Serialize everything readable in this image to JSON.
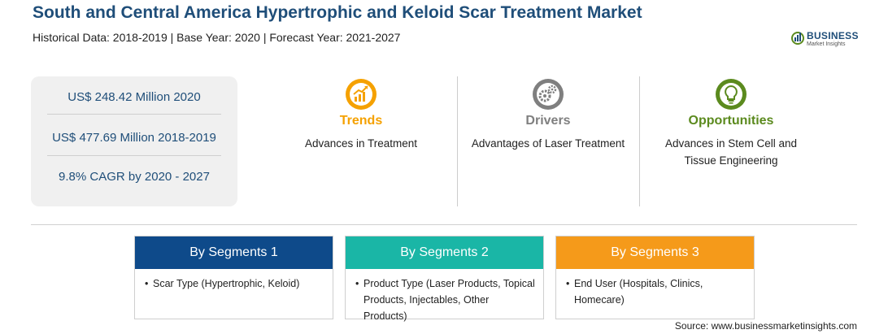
{
  "header": {
    "title": "South and Central America Hypertrophic and Keloid Scar Treatment Market",
    "subtitle": "Historical Data: 2018-2019 | Base Year: 2020 | Forecast Year: 2021-2027"
  },
  "logo": {
    "line1": "BUSINESS",
    "line2": "Market Insights"
  },
  "stats": [
    "US$ 248.42 Million 2020",
    "US$ 477.69 Million 2018-2019",
    "9.8% CAGR by 2020 - 2027"
  ],
  "columns": [
    {
      "heading": "Trends",
      "desc": "Advances in Treatment",
      "color": "#f5a100",
      "icon": "chart-up-icon"
    },
    {
      "heading": "Drivers",
      "desc": "Advantages of Laser Treatment",
      "color": "#7f7f7f",
      "icon": "gears-icon"
    },
    {
      "heading": "Opportunities",
      "desc_lines": [
        "Advances in Stem Cell and",
        "Tissue Engineering"
      ],
      "color": "#5b8a1e",
      "icon": "lightbulb-icon"
    }
  ],
  "segments": [
    {
      "title": "By Segments 1",
      "color": "#0e4a8a",
      "lines": [
        "Scar Type (Hypertrophic, Keloid)"
      ]
    },
    {
      "title": "By Segments 2",
      "color": "#1ab6a6",
      "lines": [
        "Product Type (Laser Products, Topical",
        "Products, Injectables, Other Products)"
      ]
    },
    {
      "title": "By Segments 3",
      "color": "#f59a1a",
      "lines": [
        "End User (Hospitals, Clinics,",
        "Homecare)"
      ]
    }
  ],
  "source": "Source: www.businessmarketinsights.com"
}
